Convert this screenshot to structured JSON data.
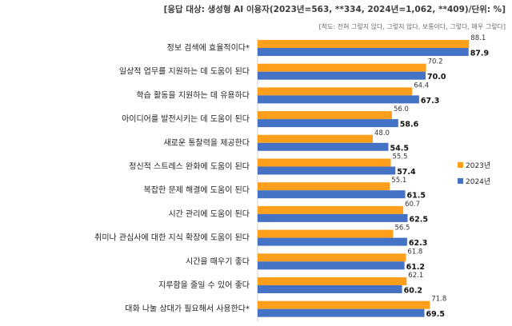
{
  "header": {
    "subtitle": "[응답 대상: 생성형 AI 이용자(2023년=563, **334, 2024년=1,062, **409)/단위: %]",
    "scale_note": "[척도: 전혀 그렇지 않다, 그렇지 않다, 보통이다, 그렇다, 매우 그렇다]"
  },
  "colors": {
    "series_2023": "#FF9F1C",
    "series_2024": "#4472C4"
  },
  "chart_data": {
    "type": "bar",
    "orientation": "horizontal",
    "categories": [
      "정보 검색에 효율적이다*",
      "일상적 업무를 지원하는 데 도움이 된다",
      "학습 활동을 지원하는 데 유용하다",
      "아이디어를 발전시키는 데 도움이 된다",
      "새로운 통찰력을 제공한다",
      "정신적 스트레스 완화에 도움이 된다",
      "복잡한 문제 해결에 도움이 된다",
      "시간 관리에 도움이 된다",
      "취미나 관심사에 대한 지식 확장에 도움이 된다",
      "시간을 때우기 좋다",
      "지루함을 줄일 수 있어 좋다",
      "대화 나눌 상대가 필요해서 사용한다*"
    ],
    "series": [
      {
        "name": "2023년",
        "values": [
          88.1,
          70.2,
          64.4,
          56.0,
          48.0,
          55.5,
          55.1,
          60.7,
          56.5,
          61.8,
          62.1,
          71.8
        ],
        "labels": [
          "88.1",
          "70.2",
          "64.4",
          "56.0",
          "48.0",
          "55.5",
          "55.1",
          "60.7",
          "56.5",
          "61.8",
          "62.1",
          "71.8"
        ]
      },
      {
        "name": "2024년",
        "values": [
          87.9,
          70.0,
          67.3,
          58.6,
          54.5,
          57.4,
          61.5,
          62.5,
          62.3,
          61.2,
          60.2,
          69.5
        ],
        "labels": [
          "87.9",
          "70.0",
          "67.3",
          "58.6",
          "54.5",
          "57.4",
          "61.5",
          "62.5",
          "62.3",
          "61.2",
          "60.2",
          "69.5"
        ]
      }
    ],
    "xlim": [
      0,
      100
    ],
    "grid": false,
    "legend": "right"
  }
}
